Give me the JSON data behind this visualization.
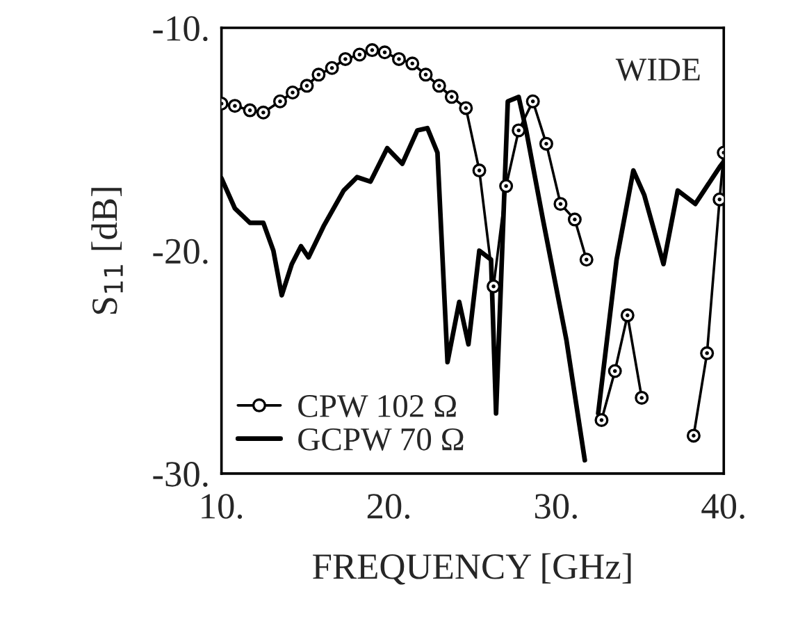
{
  "chart_data": {
    "type": "line",
    "xlabel": "FREQUENCY [GHz]",
    "ylabel": "S$_{11}$ [dB]",
    "xlim": [
      10,
      40
    ],
    "ylim": [
      -30,
      -10
    ],
    "xticks": [
      {
        "value": 10,
        "label": "10."
      },
      {
        "value": 20,
        "label": "20."
      },
      {
        "value": 30,
        "label": "30."
      },
      {
        "value": 40,
        "label": "40."
      }
    ],
    "yticks": [
      {
        "value": -30,
        "label": "-30."
      },
      {
        "value": -20,
        "label": "-20."
      },
      {
        "value": -10,
        "label": "-10."
      }
    ],
    "grid": false,
    "legend": "bottom left",
    "annotations": [
      "WIDE"
    ],
    "series": [
      {
        "name": "CPW 102 Ω",
        "color": "#000000",
        "marker": "circle",
        "x": [
          10.0,
          10.8,
          11.7,
          12.5,
          13.5,
          14.25,
          15.1,
          15.8,
          16.6,
          17.4,
          18.25,
          19.0,
          19.75,
          20.6,
          21.4,
          22.2,
          23.0,
          23.75,
          24.6,
          25.4,
          26.25,
          27.0,
          27.75,
          28.6,
          29.4,
          30.25,
          31.1,
          31.8,
          32.2,
          32.7,
          33.5,
          34.25,
          35.1,
          36.0,
          38.2,
          39.0,
          39.75,
          40.0
        ],
        "values": [
          -13.4,
          -13.5,
          -13.7,
          -13.8,
          -13.3,
          -12.9,
          -12.6,
          -12.1,
          -11.8,
          -11.4,
          -11.2,
          -11.0,
          -11.1,
          -11.4,
          -11.6,
          -12.1,
          -12.6,
          -13.1,
          -13.6,
          -16.4,
          -21.6,
          -17.1,
          -14.6,
          -13.3,
          -15.2,
          -17.9,
          -18.6,
          -20.4,
          null,
          -27.6,
          -25.4,
          -22.9,
          -26.6,
          null,
          -28.3,
          -24.6,
          -17.7,
          -15.6
        ]
      },
      {
        "name": "GCPW 70 Ω",
        "color": "#000000",
        "marker": "none",
        "x": [
          10.0,
          10.8,
          11.7,
          12.5,
          13.1,
          13.6,
          14.2,
          14.75,
          15.2,
          16.1,
          17.3,
          18.1,
          18.9,
          19.9,
          20.8,
          21.7,
          22.3,
          22.9,
          23.5,
          24.2,
          24.75,
          25.4,
          26.1,
          26.4,
          27.1,
          27.75,
          28.2,
          29.2,
          30.6,
          31.7,
          32.1,
          32.5,
          33.6,
          34.6,
          35.25,
          36.4,
          37.25,
          38.3,
          39.75,
          40.0
        ],
        "values": [
          -16.75,
          -18.1,
          -18.75,
          -18.75,
          -20.0,
          -22.0,
          -20.6,
          -19.8,
          -20.3,
          -18.9,
          -17.3,
          -16.7,
          -16.9,
          -15.4,
          -16.1,
          -14.6,
          -14.5,
          -15.6,
          -25.0,
          -22.3,
          -24.2,
          -20.0,
          -20.4,
          -27.3,
          -13.3,
          -13.1,
          -14.6,
          -18.6,
          -24.0,
          -29.4,
          null,
          -27.3,
          -20.4,
          -16.4,
          -17.5,
          -20.6,
          -17.3,
          -17.9,
          -16.25,
          -16.0
        ]
      }
    ]
  }
}
